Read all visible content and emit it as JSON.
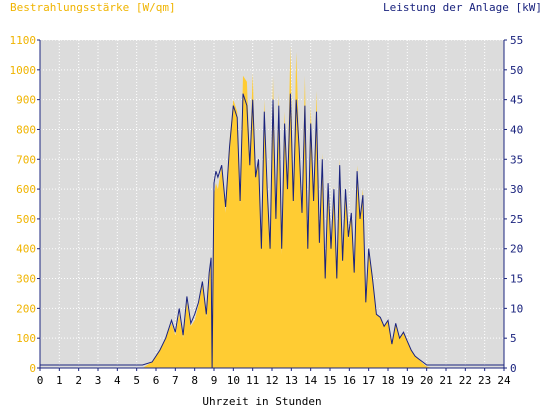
{
  "chart_data": {
    "type": "area",
    "left_axis_title": "Bestrahlungsstärke [W/qm]",
    "right_axis_title": "Leistung der Anlage [kW]",
    "xlabel": "Uhrzeit in Stunden",
    "xlim": [
      0,
      24
    ],
    "x_ticks": [
      "0",
      "1",
      "2",
      "3",
      "4",
      "5",
      "6",
      "7",
      "8",
      "9",
      "10",
      "11",
      "12",
      "13",
      "14",
      "15",
      "16",
      "17",
      "18",
      "19",
      "20",
      "21",
      "22",
      "23",
      "24"
    ],
    "ylim_left": [
      0,
      1100
    ],
    "y_ticks_left": [
      "0",
      "100",
      "200",
      "300",
      "400",
      "500",
      "600",
      "700",
      "800",
      "900",
      "1000",
      "1100"
    ],
    "ylim_right": [
      0,
      55
    ],
    "y_ticks_right": [
      "0",
      "5",
      "10",
      "15",
      "20",
      "25",
      "30",
      "35",
      "40",
      "45",
      "50",
      "55"
    ],
    "grid": true,
    "colors": {
      "plot_background": "#dcdcdc",
      "irradiance": "#ffcc33",
      "power": "#1a237e",
      "left_axis_text": "#f0b400",
      "right_axis_text": "#1a237e",
      "axis_text": "#000000"
    },
    "series": [
      {
        "name": "Bestrahlungsstärke [W/qm]",
        "axis": "left",
        "style": "area",
        "x": [
          0,
          5.3,
          5.8,
          6.2,
          6.5,
          6.8,
          7.0,
          7.2,
          7.4,
          7.6,
          7.8,
          8.0,
          8.2,
          8.4,
          8.6,
          8.75,
          8.85,
          8.9,
          9.0,
          9.1,
          9.2,
          9.4,
          9.6,
          9.8,
          10.0,
          10.2,
          10.35,
          10.5,
          10.7,
          10.85,
          11.0,
          11.15,
          11.3,
          11.45,
          11.6,
          11.75,
          11.9,
          12.05,
          12.2,
          12.35,
          12.5,
          12.65,
          12.8,
          12.95,
          13.1,
          13.25,
          13.4,
          13.55,
          13.7,
          13.85,
          14.0,
          14.15,
          14.3,
          14.45,
          14.6,
          14.75,
          14.9,
          15.05,
          15.2,
          15.35,
          15.5,
          15.65,
          15.8,
          15.95,
          16.1,
          16.25,
          16.4,
          16.55,
          16.7,
          16.85,
          17.0,
          17.2,
          17.4,
          17.6,
          17.8,
          18.0,
          18.2,
          18.4,
          18.6,
          18.8,
          19.0,
          19.2,
          19.4,
          19.6,
          19.8,
          20.0,
          20.3,
          24
        ],
        "values": [
          0,
          0,
          20,
          60,
          100,
          150,
          110,
          180,
          100,
          220,
          140,
          160,
          210,
          280,
          170,
          300,
          380,
          0,
          580,
          620,
          600,
          680,
          520,
          760,
          900,
          860,
          550,
          980,
          960,
          700,
          990,
          650,
          700,
          400,
          900,
          600,
          400,
          980,
          500,
          920,
          380,
          860,
          620,
          1080,
          550,
          1060,
          760,
          520,
          980,
          400,
          880,
          560,
          930,
          420,
          720,
          300,
          620,
          400,
          610,
          300,
          700,
          350,
          600,
          430,
          520,
          320,
          680,
          500,
          600,
          230,
          400,
          300,
          180,
          170,
          140,
          160,
          80,
          150,
          100,
          120,
          90,
          60,
          40,
          30,
          15,
          5,
          0,
          0
        ]
      },
      {
        "name": "Leistung der Anlage [kW]",
        "axis": "right",
        "style": "line",
        "x": [
          0,
          5.3,
          5.8,
          6.2,
          6.5,
          6.8,
          7.0,
          7.2,
          7.4,
          7.6,
          7.8,
          8.0,
          8.2,
          8.4,
          8.6,
          8.75,
          8.85,
          8.9,
          9.0,
          9.1,
          9.2,
          9.4,
          9.6,
          9.8,
          10.0,
          10.2,
          10.35,
          10.5,
          10.7,
          10.85,
          11.0,
          11.15,
          11.3,
          11.45,
          11.6,
          11.75,
          11.9,
          12.05,
          12.2,
          12.35,
          12.5,
          12.65,
          12.8,
          12.95,
          13.1,
          13.25,
          13.4,
          13.55,
          13.7,
          13.85,
          14.0,
          14.15,
          14.3,
          14.45,
          14.6,
          14.75,
          14.9,
          15.05,
          15.2,
          15.35,
          15.5,
          15.65,
          15.8,
          15.95,
          16.1,
          16.25,
          16.4,
          16.55,
          16.7,
          16.85,
          17.0,
          17.2,
          17.4,
          17.6,
          17.8,
          18.0,
          18.2,
          18.4,
          18.6,
          18.8,
          19.0,
          19.2,
          19.4,
          19.6,
          19.8,
          20.0,
          20.3,
          24
        ],
        "values": [
          0.5,
          0.5,
          1,
          3,
          5,
          8,
          6,
          10,
          5.5,
          12,
          7.5,
          9,
          11,
          14.5,
          9,
          16,
          18.5,
          0,
          31,
          33,
          32,
          34,
          27,
          37,
          44,
          42,
          28,
          46,
          44,
          34,
          45,
          32,
          35,
          20,
          43,
          30,
          20,
          45,
          25,
          44,
          20,
          41,
          30,
          46,
          28,
          45,
          37,
          26,
          44,
          20,
          41,
          28,
          43,
          21,
          35,
          15,
          31,
          20,
          30,
          15,
          34,
          18,
          30,
          22,
          26,
          16,
          33,
          25,
          29,
          11,
          20,
          15,
          9,
          8.5,
          7,
          8,
          4,
          7.5,
          5,
          6,
          4.5,
          3,
          2,
          1.5,
          1,
          0.5,
          0.5,
          0.5
        ]
      }
    ]
  }
}
